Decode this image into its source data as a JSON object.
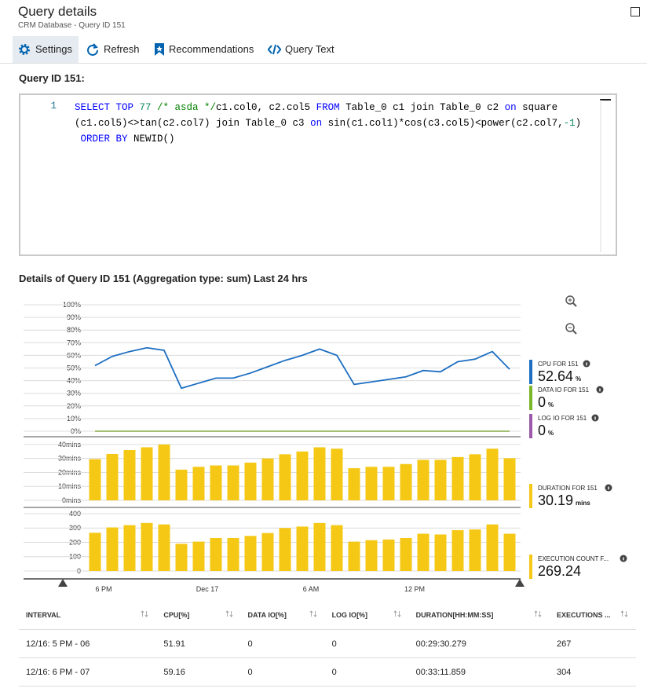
{
  "header": {
    "title": "Query details",
    "subtitle": "CRM Database - Query ID 151"
  },
  "toolbar": [
    "Settings",
    "Refresh",
    "Recommendations",
    "Query Text"
  ],
  "query_label": "Query ID 151:",
  "code": {
    "line_number": 1,
    "colors": {
      "keyword": "#0000ff",
      "number": "#09885a",
      "comment": "#008000",
      "plain": "#000000"
    },
    "rows": [
      [
        {
          "text": "SELECT TOP",
          "kind": "keyword"
        },
        {
          "text": " 77",
          "kind": "number"
        },
        {
          "text": " /* asda */",
          "kind": "comment"
        },
        {
          "text": "c1.col0, c2.col5 ",
          "kind": "plain"
        },
        {
          "text": "FROM",
          "kind": "keyword"
        },
        {
          "text": " Table_0 c1 join Table_0 c2 ",
          "kind": "plain"
        },
        {
          "text": "on",
          "kind": "keyword"
        },
        {
          "text": " square",
          "kind": "plain"
        }
      ],
      [
        {
          "text": "(c1.col5)<>tan(c2.col7) join Table_0 c3 ",
          "kind": "plain"
        },
        {
          "text": "on",
          "kind": "keyword"
        },
        {
          "text": " sin(c1.col1)*cos(c3.col5)<power(c2.col7,",
          "kind": "plain"
        },
        {
          "text": "-1",
          "kind": "number"
        },
        {
          "text": ")",
          "kind": "plain"
        }
      ],
      [
        {
          "text": " ORDER BY",
          "kind": "keyword"
        },
        {
          "text": " NEWID()",
          "kind": "plain"
        }
      ]
    ]
  },
  "details_title": "Details of Query ID 151 (Aggregation type: sum) Last 24 hrs",
  "chart_data": [
    {
      "type": "line",
      "ylim": [
        0,
        100
      ],
      "grid": true,
      "yticks": [
        {
          "value": 0,
          "label": "0%"
        },
        {
          "value": 10,
          "label": "10%"
        },
        {
          "value": 20,
          "label": "20%"
        },
        {
          "value": 30,
          "label": "30%"
        },
        {
          "value": 40,
          "label": "40%"
        },
        {
          "value": 50,
          "label": "50%"
        },
        {
          "value": 60,
          "label": "60%"
        },
        {
          "value": 70,
          "label": "70%"
        },
        {
          "value": 80,
          "label": "80%"
        },
        {
          "value": 90,
          "label": "90%"
        },
        {
          "value": 100,
          "label": "100%"
        }
      ],
      "series": [
        {
          "name": "CPU FOR 151",
          "color": "#1e6fc2",
          "legend_value": 52.64,
          "unit": "%",
          "values": [
            51.91,
            59.16,
            63,
            66,
            64,
            34,
            38,
            42,
            42,
            46,
            51,
            56,
            60,
            65,
            60,
            37,
            39,
            41,
            43,
            48,
            47,
            55,
            57,
            63,
            49
          ]
        },
        {
          "name": "DATA IO FOR 151",
          "color": "#7bb52a",
          "legend_value": 0,
          "unit": "%",
          "values": [
            0,
            0,
            0,
            0,
            0,
            0,
            0,
            0,
            0,
            0,
            0,
            0,
            0,
            0,
            0,
            0,
            0,
            0,
            0,
            0,
            0,
            0,
            0,
            0,
            0
          ]
        },
        {
          "name": "LOG IO FOR 151",
          "color": "#9b59a8",
          "legend_value": 0,
          "unit": "%",
          "values": [
            0,
            0,
            0,
            0,
            0,
            0,
            0,
            0,
            0,
            0,
            0,
            0,
            0,
            0,
            0,
            0,
            0,
            0,
            0,
            0,
            0,
            0,
            0,
            0,
            0
          ]
        }
      ]
    },
    {
      "type": "bar",
      "ylim": [
        0,
        45
      ],
      "grid": true,
      "yticks": [
        {
          "value": 0,
          "label": "0mins"
        },
        {
          "value": 10,
          "label": "10mins"
        },
        {
          "value": 20,
          "label": "20mins"
        },
        {
          "value": 30,
          "label": "30mins"
        },
        {
          "value": 40,
          "label": "40mins"
        }
      ],
      "series": [
        {
          "name": "DURATION FOR 151",
          "color": "#f5c816",
          "legend_value": 30.19,
          "unit": "mins",
          "values": [
            29.5,
            33.2,
            36,
            38,
            40,
            22,
            24,
            25,
            25,
            27,
            30,
            33,
            35,
            38,
            37,
            23,
            24,
            24,
            26,
            29,
            29,
            31,
            33,
            37,
            30.19
          ]
        }
      ]
    },
    {
      "type": "bar",
      "ylim": [
        0,
        430
      ],
      "grid": true,
      "yticks": [
        0,
        100,
        200,
        300,
        400
      ],
      "categories": [
        null,
        "6 PM",
        null,
        null,
        null,
        null,
        null,
        "Dec 17",
        null,
        null,
        null,
        null,
        null,
        "6 AM",
        null,
        null,
        null,
        null,
        null,
        "12 PM",
        null,
        null,
        null,
        null,
        null
      ],
      "series": [
        {
          "name": "EXECUTION COUNT F...",
          "color": "#f5c816",
          "legend_value": 269.24,
          "values": [
            267,
            304,
            320,
            335,
            325,
            190,
            205,
            230,
            230,
            245,
            265,
            300,
            310,
            335,
            320,
            205,
            215,
            220,
            230,
            260,
            255,
            285,
            290,
            325,
            260
          ]
        }
      ]
    }
  ],
  "table": {
    "headers": [
      "INTERVAL",
      "CPU[%]",
      "DATA IO[%]",
      "LOG IO[%]",
      "DURATION[HH:MM:SS]",
      "EXECUTIONS ..."
    ],
    "rows": [
      [
        "12/16: 5 PM - 06",
        51.91,
        0,
        0,
        "00:29:30.279",
        267
      ],
      [
        "12/16: 6 PM - 07",
        59.16,
        0,
        0,
        "00:33:11.859",
        304
      ]
    ]
  }
}
